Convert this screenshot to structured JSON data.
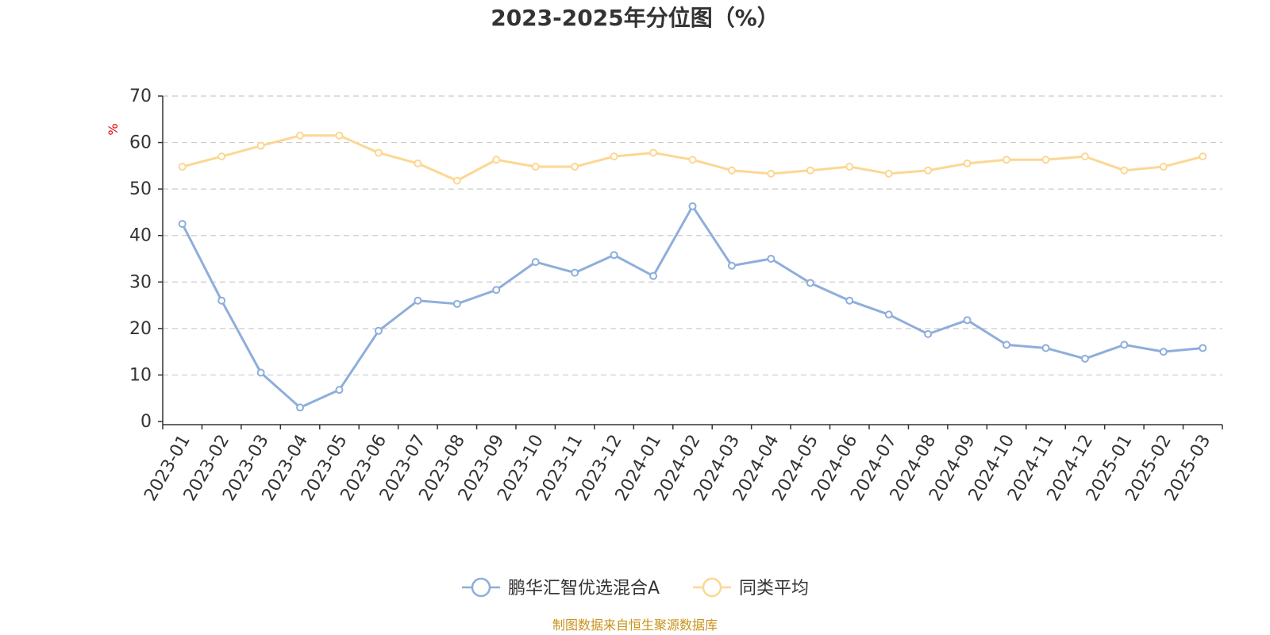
{
  "chart_data": {
    "type": "line",
    "title": "2023-2025年分位图（%）",
    "ylabel": "%",
    "xlabel": "",
    "ylim": [
      0,
      70
    ],
    "yticks": [
      0,
      10,
      20,
      30,
      40,
      50,
      60,
      70
    ],
    "grid": true,
    "legend_position": "bottom",
    "categories": [
      "2023-01",
      "2023-02",
      "2023-03",
      "2023-04",
      "2023-05",
      "2023-06",
      "2023-07",
      "2023-08",
      "2023-09",
      "2023-10",
      "2023-11",
      "2023-12",
      "2024-01",
      "2024-02",
      "2024-03",
      "2024-04",
      "2024-05",
      "2024-06",
      "2024-07",
      "2024-08",
      "2024-09",
      "2024-10",
      "2024-11",
      "2024-12",
      "2025-01",
      "2025-02",
      "2025-03"
    ],
    "series": [
      {
        "name": "鹏华汇智优选混合A",
        "color": "#8eaedb",
        "values": [
          42.5,
          26.0,
          10.5,
          3.0,
          6.8,
          19.5,
          26.0,
          25.3,
          28.3,
          34.3,
          32.0,
          35.8,
          31.3,
          46.3,
          33.5,
          35.0,
          29.8,
          26.0,
          23.0,
          18.8,
          21.8,
          16.5,
          15.8,
          13.5,
          16.5,
          15.0,
          15.8
        ]
      },
      {
        "name": "同类平均",
        "color": "#fcd793",
        "values": [
          54.8,
          57.0,
          59.3,
          61.5,
          61.5,
          57.8,
          55.5,
          51.8,
          56.3,
          54.8,
          54.8,
          57.0,
          57.8,
          56.3,
          54.0,
          53.3,
          54.0,
          54.8,
          53.3,
          54.0,
          55.5,
          56.3,
          56.3,
          57.0,
          54.0,
          54.8,
          57.0
        ]
      }
    ]
  },
  "source_text": "制图数据来自恒生聚源数据库"
}
